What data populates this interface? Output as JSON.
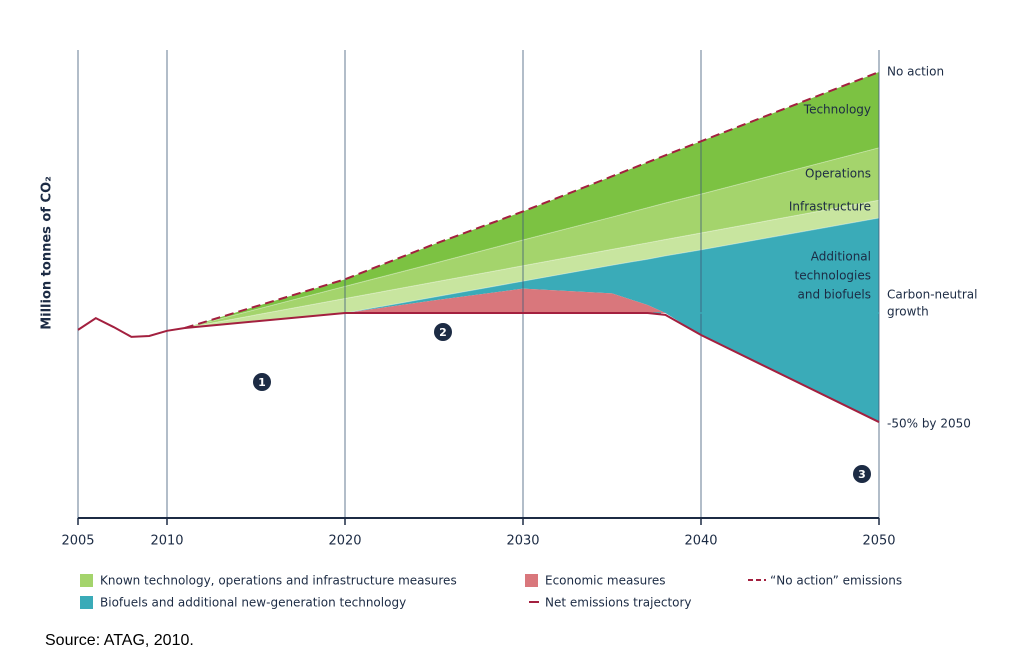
{
  "chart_data": {
    "type": "area",
    "y_label": "Million tonnes of CO₂",
    "source": "Source: ATAG, 2010.",
    "x": [
      2005,
      2006,
      2007,
      2008,
      2009,
      2010,
      2011,
      2020,
      2025,
      2030,
      2035,
      2037,
      2038,
      2040,
      2050
    ],
    "xlim": [
      2005,
      2050
    ],
    "xticks": [
      2005,
      2010,
      2020,
      2030,
      2040,
      2050
    ],
    "ylim": [
      0,
      100
    ],
    "grid": true,
    "bands": [
      {
        "label": "Technology",
        "color": "#7cc242",
        "upper": [
          null,
          null,
          null,
          null,
          null,
          null,
          40.6,
          51.0,
          58.5,
          65.5,
          73.0,
          76.0,
          77.5,
          80.5,
          95.3
        ],
        "lower": [
          null,
          null,
          null,
          null,
          null,
          null,
          40.6,
          49.5,
          54.4,
          59.4,
          64.3,
          66.3,
          67.3,
          69.2,
          79.1
        ]
      },
      {
        "label": "Operations",
        "color": "#a4d46c",
        "upper": [
          null,
          null,
          null,
          null,
          null,
          null,
          40.6,
          49.5,
          54.4,
          59.4,
          64.3,
          66.3,
          67.3,
          69.2,
          79.1
        ],
        "lower": [
          null,
          null,
          null,
          null,
          null,
          null,
          40.6,
          46.9,
          50.4,
          53.9,
          57.4,
          58.8,
          59.5,
          60.9,
          67.9
        ]
      },
      {
        "label": "Infrastructure",
        "color": "#c8e59f",
        "upper": [
          null,
          null,
          null,
          null,
          null,
          null,
          40.6,
          46.9,
          50.4,
          53.9,
          57.4,
          58.8,
          59.5,
          60.9,
          67.9
        ],
        "lower": [
          null,
          null,
          null,
          null,
          null,
          null,
          40.6,
          43.8,
          47.2,
          50.6,
          54.0,
          55.3,
          56.0,
          57.3,
          64.1
        ]
      },
      {
        "label_lines": [
          "Additional",
          "technologies",
          "and biofuels"
        ],
        "color": "#3aabb8",
        "upper": [
          null,
          null,
          null,
          null,
          null,
          null,
          null,
          43.8,
          47.2,
          50.6,
          54.0,
          55.3,
          56.0,
          57.3,
          64.1
        ],
        "lower": [
          null,
          null,
          null,
          null,
          null,
          null,
          null,
          43.8,
          46.5,
          49.0,
          48.0,
          45.5,
          43.8,
          39.1,
          20.5
        ]
      },
      {
        "color": "#d9777c",
        "upper": [
          null,
          null,
          null,
          null,
          null,
          null,
          null,
          43.8,
          46.5,
          49.0,
          48.0,
          45.5,
          43.8,
          null,
          null
        ],
        "lower": [
          null,
          null,
          null,
          null,
          null,
          null,
          null,
          43.8,
          43.8,
          43.8,
          43.8,
          43.8,
          43.8,
          null,
          null
        ]
      }
    ],
    "lines": [
      {
        "label": "No action",
        "color": "#a3203f",
        "dash": true,
        "values": [
          null,
          null,
          null,
          null,
          null,
          null,
          40.6,
          51.0,
          58.5,
          65.5,
          73.0,
          76.0,
          77.5,
          80.5,
          95.3
        ]
      },
      {
        "label": "-50% by 2050",
        "color": "#a3203f",
        "dash": false,
        "values": [
          40.2,
          42.7,
          40.8,
          38.7,
          38.9,
          40.0,
          40.6,
          43.8,
          43.8,
          43.8,
          43.8,
          43.8,
          43.4,
          39.1,
          20.5
        ]
      }
    ],
    "reference_line": {
      "label_lines": [
        "Carbon-neutral",
        "growth"
      ],
      "value": 43.8,
      "from": 2020,
      "to": 2050,
      "color": "#3aabb8"
    },
    "markers": [
      "1",
      "2",
      "3"
    ],
    "legend": [
      {
        "name": "Known technology, operations and infrastructure measures",
        "color": "#a4d46c",
        "kind": "box"
      },
      {
        "name": "Biofuels and additional new-generation technology",
        "color": "#3aabb8",
        "kind": "box"
      },
      {
        "name": "Economic measures",
        "color": "#d9777c",
        "kind": "box"
      },
      {
        "name": "Net emissions trajectory",
        "color": "#a3203f",
        "kind": "line"
      },
      {
        "name": "“No action” emissions",
        "color": "#a3203f",
        "kind": "dash"
      }
    ]
  }
}
